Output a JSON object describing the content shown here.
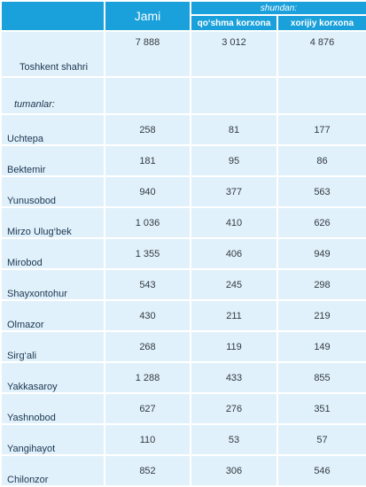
{
  "header": {
    "total": "Jami",
    "of_which": "shundan:",
    "joint": "qo‘shma korxona",
    "foreign": "xorijiy korxona"
  },
  "city": {
    "name": "Toshkent shahri",
    "total": "7 888",
    "joint": "3 012",
    "foreign": "4 876"
  },
  "section_label": "tumanlar:",
  "districts": [
    {
      "name": "Uchtepa",
      "total": "258",
      "joint": "81",
      "foreign": "177"
    },
    {
      "name": "Bektemir",
      "total": "181",
      "joint": "95",
      "foreign": "86"
    },
    {
      "name": "Yunusobod",
      "total": "940",
      "joint": "377",
      "foreign": "563"
    },
    {
      "name": "Mirzo Ulug‘bek",
      "total": "1 036",
      "joint": "410",
      "foreign": "626"
    },
    {
      "name": "Mirobod",
      "total": "1 355",
      "joint": "406",
      "foreign": "949"
    },
    {
      "name": "Shayxontohur",
      "total": "543",
      "joint": "245",
      "foreign": "298"
    },
    {
      "name": "Olmazor",
      "total": "430",
      "joint": "211",
      "foreign": "219"
    },
    {
      "name": "Sirg‘ali",
      "total": "268",
      "joint": "119",
      "foreign": "149"
    },
    {
      "name": "Yakkasaroy",
      "total": "1 288",
      "joint": "433",
      "foreign": "855"
    },
    {
      "name": "Yashnobod",
      "total": "627",
      "joint": "276",
      "foreign": "351"
    },
    {
      "name": "Yangihayot",
      "total": "110",
      "joint": "53",
      "foreign": "57"
    },
    {
      "name": "Chilonzor",
      "total": "852",
      "joint": "306",
      "foreign": "546"
    }
  ]
}
